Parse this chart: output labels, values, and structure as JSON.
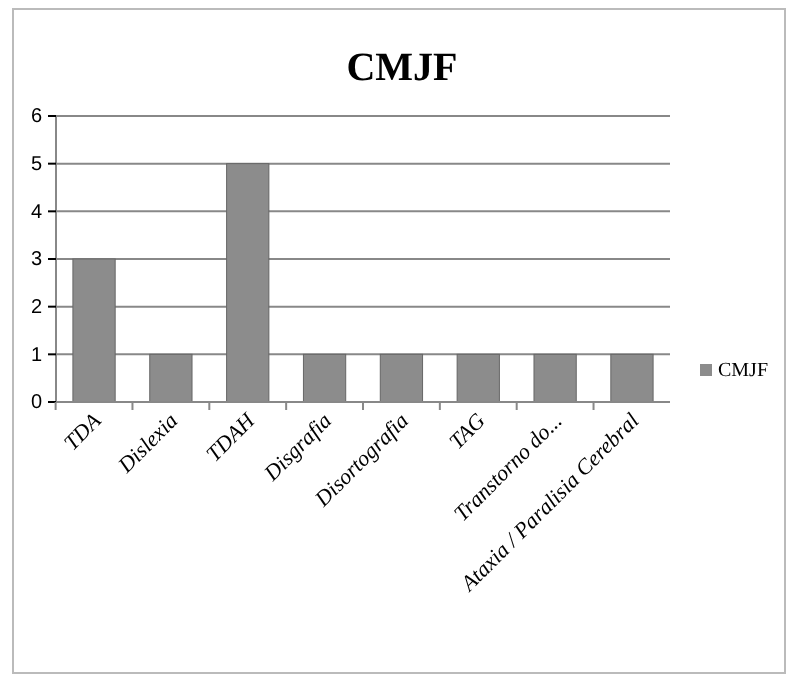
{
  "chart_data": {
    "type": "bar",
    "title": "CMJF",
    "categories": [
      "TDA",
      "Dislexia",
      "TDAH",
      "Disgrafia",
      "Disortografia",
      "TAG",
      "Transtorno do...",
      "Ataxia / Paralisia Cerebral"
    ],
    "series": [
      {
        "name": "CMJF",
        "color": "#8c8c8c",
        "values": [
          3,
          1,
          5,
          1,
          1,
          1,
          1,
          1
        ]
      }
    ],
    "ylim": [
      0,
      6
    ],
    "yticks": [
      0,
      1,
      2,
      3,
      4,
      5,
      6
    ],
    "grid": "y",
    "legend": "right"
  }
}
